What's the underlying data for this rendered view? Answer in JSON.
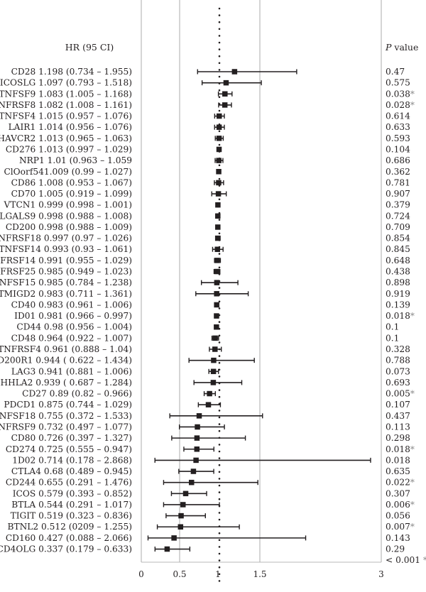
{
  "chart_data": {
    "type": "forest",
    "header_left": "HR (95 CI)",
    "header_right_italic": "P",
    "header_right_rest": " value",
    "x_ticks": [
      "0",
      "0.5",
      "1",
      "1.5",
      "3"
    ],
    "reference_line": 1,
    "rows": [
      {
        "label": "CD28 1.198 (0.734 – 1.955)",
        "hr": 1.198,
        "lo": 0.734,
        "hi": 1.955,
        "p": "0.47",
        "sig": ""
      },
      {
        "label": "ICOSLG 1.097 (0.793 – 1.518)",
        "hr": 1.097,
        "lo": 0.793,
        "hi": 1.518,
        "p": "0.575",
        "sig": ""
      },
      {
        "label": "TNFSF9 1.083 (1.005 – 1.168)",
        "hr": 1.083,
        "lo": 1.005,
        "hi": 1.168,
        "p": "0.038",
        "sig": "*"
      },
      {
        "label": "TNFRSF8 1.082 (1.008 – 1.161)",
        "hr": 1.082,
        "lo": 1.008,
        "hi": 1.161,
        "p": "0.028",
        "sig": "*"
      },
      {
        "label": "TNFSF4 1.015 (0.957 – 1.076)",
        "hr": 1.015,
        "lo": 0.957,
        "hi": 1.076,
        "p": "0.614",
        "sig": ""
      },
      {
        "label": "LAIR1 1.014 (0.956 – 1.076)",
        "hr": 1.014,
        "lo": 0.956,
        "hi": 1.076,
        "p": "0.633",
        "sig": ""
      },
      {
        "label": "HAVCR2 1.013 (0.965 – 1.063)",
        "hr": 1.013,
        "lo": 0.965,
        "hi": 1.063,
        "p": "0.593",
        "sig": ""
      },
      {
        "label": "CD276 1.013 (0.997 – 1.029)",
        "hr": 1.013,
        "lo": 0.997,
        "hi": 1.029,
        "p": "0.104",
        "sig": ""
      },
      {
        "label": "NRP1 1.01 (0.963 – 1.059",
        "hr": 1.01,
        "lo": 0.963,
        "hi": 1.059,
        "p": "0.686",
        "sig": ""
      },
      {
        "label": "ClOorf541.009 (0.99 – 1.027)",
        "hr": 1.009,
        "lo": 0.99,
        "hi": 1.027,
        "p": "0.362",
        "sig": ""
      },
      {
        "label": "CD86 1.008 (0.953 – 1.067)",
        "hr": 1.008,
        "lo": 0.953,
        "hi": 1.067,
        "p": "0.781",
        "sig": ""
      },
      {
        "label": "CD70 1.005 (0.919 – 1.099)",
        "hr": 1.005,
        "lo": 0.919,
        "hi": 1.099,
        "p": "0.907",
        "sig": ""
      },
      {
        "label": "VTCN1 0.999 (0.998 – 1.001)",
        "hr": 0.999,
        "lo": 0.998,
        "hi": 1.001,
        "p": "0.379",
        "sig": ""
      },
      {
        "label": "LGALS9 0.998 (0.988 – 1.008)",
        "hr": 0.998,
        "lo": 0.988,
        "hi": 1.008,
        "p": "0.724",
        "sig": ""
      },
      {
        "label": "CD200 0.998 (0.988 – 1.009)",
        "hr": 0.998,
        "lo": 0.988,
        "hi": 1.009,
        "p": "0.709",
        "sig": ""
      },
      {
        "label": "TNFRSF18 0.997 (0.97 – 1.026)",
        "hr": 0.997,
        "lo": 0.97,
        "hi": 1.026,
        "p": "0.854",
        "sig": ""
      },
      {
        "label": "TNFSF14 0.993 (0.93 – 1.061)",
        "hr": 0.993,
        "lo": 0.93,
        "hi": 1.061,
        "p": "0.845",
        "sig": ""
      },
      {
        "label": "TNFRSF14 0.991 (0.955 – 1.029)",
        "hr": 0.991,
        "lo": 0.955,
        "hi": 1.029,
        "p": "0.648",
        "sig": ""
      },
      {
        "label": "TNFRSF25 0.985 (0.949 – 1.023)",
        "hr": 0.985,
        "lo": 0.949,
        "hi": 1.023,
        "p": "0.438",
        "sig": ""
      },
      {
        "label": "TNFSF15 0.985 (0.784 – 1.238)",
        "hr": 0.985,
        "lo": 0.784,
        "hi": 1.238,
        "p": "0.898",
        "sig": ""
      },
      {
        "label": "TMIGD2 0.983 (0.711 – 1.361)",
        "hr": 0.983,
        "lo": 0.711,
        "hi": 1.361,
        "p": "0.919",
        "sig": ""
      },
      {
        "label": "CD40 0.983 (0.961 – 1.006)",
        "hr": 0.983,
        "lo": 0.961,
        "hi": 1.006,
        "p": "0.139",
        "sig": ""
      },
      {
        "label": "ID01 0.981 (0.966 – 0.997)",
        "hr": 0.981,
        "lo": 0.966,
        "hi": 0.997,
        "p": "0.018",
        "sig": "*"
      },
      {
        "label": "CD44 0.98 (0.956 – 1.004)",
        "hr": 0.98,
        "lo": 0.956,
        "hi": 1.004,
        "p": "0.1",
        "sig": ""
      },
      {
        "label": "CD48 0.964 (0.922 – 1.007)",
        "hr": 0.964,
        "lo": 0.922,
        "hi": 1.007,
        "p": "0.1",
        "sig": ""
      },
      {
        "label": "TNFRSF4 0.961 (0.888 – 1.04)",
        "hr": 0.961,
        "lo": 0.888,
        "hi": 1.04,
        "p": "0.328",
        "sig": ""
      },
      {
        "label": "CD200R1 0.944 ( 0.622 – 1.434)",
        "hr": 0.944,
        "lo": 0.622,
        "hi": 1.434,
        "p": "0.788",
        "sig": ""
      },
      {
        "label": "LAG3 0.941 (0.881 – 1.006)",
        "hr": 0.941,
        "lo": 0.881,
        "hi": 1.006,
        "p": "0.073",
        "sig": ""
      },
      {
        "label": "HHLA2 0.939 ( 0.687 – 1.284)",
        "hr": 0.939,
        "lo": 0.687,
        "hi": 1.284,
        "p": "0.693",
        "sig": ""
      },
      {
        "label": "CD27 0.89 (0.82 – 0.966)",
        "hr": 0.89,
        "lo": 0.82,
        "hi": 0.966,
        "p": "0.005",
        "sig": "*"
      },
      {
        "label": "PDCD1 0.875 (0.744 – 1.029)",
        "hr": 0.875,
        "lo": 0.744,
        "hi": 1.029,
        "p": "0.107",
        "sig": ""
      },
      {
        "label": "TNFSF18 0.755 (0.372 – 1.533)",
        "hr": 0.755,
        "lo": 0.372,
        "hi": 1.533,
        "p": "0.437",
        "sig": ""
      },
      {
        "label": "TNFRSF9 0.732 (0.497 – 1.077)",
        "hr": 0.732,
        "lo": 0.497,
        "hi": 1.077,
        "p": "0.113",
        "sig": ""
      },
      {
        "label": "CD80 0.726 (0.397 – 1.327)",
        "hr": 0.726,
        "lo": 0.397,
        "hi": 1.327,
        "p": "0.298",
        "sig": ""
      },
      {
        "label": "CD274 0.725 (0.555 – 0.947)",
        "hr": 0.725,
        "lo": 0.555,
        "hi": 0.947,
        "p": "0.018",
        "sig": "*"
      },
      {
        "label": "1D02 0.714 (0.178 – 2.868)",
        "hr": 0.714,
        "lo": 0.178,
        "hi": 2.868,
        "p": "0.018",
        "sig": ""
      },
      {
        "label": "CTLA4 0.68 (0.489 – 0.945)",
        "hr": 0.68,
        "lo": 0.489,
        "hi": 0.945,
        "p": "0.635",
        "sig": ""
      },
      {
        "label": "CD244 0.655 (0.291 – 1.476)",
        "hr": 0.655,
        "lo": 0.291,
        "hi": 1.476,
        "p": "0.022",
        "sig": "*"
      },
      {
        "label": "ICOS 0.579 (0.393 – 0.852)",
        "hr": 0.579,
        "lo": 0.393,
        "hi": 0.852,
        "p": "0.307",
        "sig": ""
      },
      {
        "label": "BTLA 0.544 (0.291 – 1.017)",
        "hr": 0.544,
        "lo": 0.291,
        "hi": 1.017,
        "p": "0.006",
        "sig": "*"
      },
      {
        "label": "TIGIT 0.519 (0.323 – 0.836)",
        "hr": 0.519,
        "lo": 0.323,
        "hi": 0.836,
        "p": "0.056",
        "sig": ""
      },
      {
        "label": "BTNL2 0.512 (0209 – 1.255)",
        "hr": 0.512,
        "lo": 0.209,
        "hi": 1.255,
        "p": "0.007",
        "sig": "*"
      },
      {
        "label": "CD160 0.427 (0.088 – 2.066)",
        "hr": 0.427,
        "lo": 0.088,
        "hi": 2.066,
        "p": "0.143",
        "sig": ""
      },
      {
        "label": "CD4OLG 0.337 (0.179 – 0.633)",
        "hr": 0.337,
        "lo": 0.179,
        "hi": 0.633,
        "p": "0.29",
        "sig": ""
      }
    ],
    "last_p": "< 0.001",
    "last_sig": "**",
    "colors": {
      "grid": "#b9b9b9",
      "ink": "#231f20",
      "sig": "#8a8a8a"
    }
  }
}
